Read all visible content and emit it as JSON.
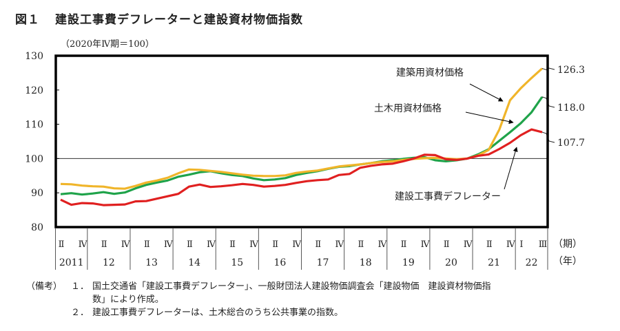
{
  "figure": {
    "number": "図１",
    "title": "建設工事費デフレーターと建設資材物価指数",
    "unit": "（2020年Ⅳ期＝100）"
  },
  "chart_data": {
    "type": "line",
    "title": "建設工事費デフレーターと建設資材物価指数",
    "ylabel": "（2020年Ⅳ期＝100）",
    "ylim": [
      80,
      130
    ],
    "yticks": [
      "80",
      "90",
      "100",
      "110",
      "120",
      "130"
    ],
    "reference_line": 100,
    "x_quarter_labels": [
      "Ⅱ",
      "Ⅳ",
      "Ⅱ",
      "Ⅳ",
      "Ⅱ",
      "Ⅳ",
      "Ⅱ",
      "Ⅳ",
      "Ⅱ",
      "Ⅳ",
      "Ⅱ",
      "Ⅳ",
      "Ⅱ",
      "Ⅳ",
      "Ⅱ",
      "Ⅳ",
      "Ⅱ",
      "Ⅳ",
      "Ⅱ",
      "Ⅳ",
      "Ⅱ",
      "Ⅳ",
      "Ⅰ",
      "Ⅲ"
    ],
    "x_quarter_label_index": [
      0,
      2,
      4,
      6,
      8,
      10,
      12,
      14,
      16,
      18,
      20,
      22,
      24,
      26,
      28,
      30,
      32,
      34,
      36,
      38,
      40,
      42,
      43,
      45
    ],
    "x_year_labels": [
      "2011",
      "12",
      "13",
      "14",
      "15",
      "16",
      "17",
      "18",
      "19",
      "20",
      "21",
      "22"
    ],
    "x_year_quarter_counts": [
      3,
      4,
      4,
      4,
      4,
      4,
      4,
      4,
      4,
      4,
      4,
      3
    ],
    "x_axis_unit_quarter": "（期）",
    "x_axis_unit_year": "（年）",
    "x": [
      "2011Q2",
      "2011Q3",
      "2011Q4",
      "2012Q1",
      "2012Q2",
      "2012Q3",
      "2012Q4",
      "2013Q1",
      "2013Q2",
      "2013Q3",
      "2013Q4",
      "2014Q1",
      "2014Q2",
      "2014Q3",
      "2014Q4",
      "2015Q1",
      "2015Q2",
      "2015Q3",
      "2015Q4",
      "2016Q1",
      "2016Q2",
      "2016Q3",
      "2016Q4",
      "2017Q1",
      "2017Q2",
      "2017Q3",
      "2017Q4",
      "2018Q1",
      "2018Q2",
      "2018Q3",
      "2018Q4",
      "2019Q1",
      "2019Q2",
      "2019Q3",
      "2019Q4",
      "2020Q1",
      "2020Q2",
      "2020Q3",
      "2020Q4",
      "2021Q1",
      "2021Q2",
      "2021Q3",
      "2021Q4",
      "2022Q1",
      "2022Q2",
      "2022Q3"
    ],
    "series": [
      {
        "name": "建築用資材価格",
        "color": "#f0b52a",
        "end_label": "126.3",
        "values": [
          92.6,
          92.5,
          92.1,
          91.9,
          91.8,
          91.3,
          91.2,
          92.0,
          93.0,
          93.6,
          94.4,
          95.7,
          96.8,
          96.7,
          96.4,
          96.1,
          95.7,
          95.3,
          95.0,
          94.9,
          94.9,
          95.1,
          95.8,
          96.2,
          96.5,
          97.1,
          97.7,
          98.0,
          98.3,
          98.7,
          99.0,
          99.2,
          99.6,
          99.9,
          100.1,
          100.2,
          100.0,
          99.8,
          100.0,
          100.9,
          102.5,
          108.5,
          117.0,
          120.5,
          123.5,
          126.3
        ]
      },
      {
        "name": "土木用資材価格",
        "color": "#1fa34a",
        "end_label": "118.0",
        "values": [
          89.6,
          89.9,
          89.5,
          89.8,
          90.2,
          89.7,
          90.1,
          91.3,
          92.3,
          93.0,
          93.6,
          94.7,
          95.3,
          96.0,
          96.3,
          95.7,
          95.2,
          94.9,
          94.2,
          93.7,
          93.9,
          94.3,
          95.2,
          95.8,
          96.3,
          97.0,
          97.6,
          97.8,
          98.3,
          98.7,
          99.2,
          99.5,
          99.9,
          100.2,
          100.4,
          99.5,
          99.2,
          99.5,
          100.0,
          101.2,
          102.7,
          105.2,
          107.7,
          110.3,
          113.5,
          118.0
        ]
      },
      {
        "name": "建設工事費デフレーター",
        "color": "#e02020",
        "end_label": "107.7",
        "values": [
          88.0,
          86.5,
          87.0,
          86.9,
          86.4,
          86.5,
          86.6,
          87.5,
          87.6,
          88.3,
          89.0,
          89.7,
          91.8,
          92.4,
          91.7,
          91.9,
          92.2,
          92.6,
          92.3,
          91.8,
          92.0,
          92.3,
          92.9,
          93.4,
          93.7,
          93.9,
          95.2,
          95.5,
          97.3,
          97.9,
          98.3,
          98.5,
          99.2,
          100.0,
          101.1,
          101.0,
          99.8,
          99.6,
          100.0,
          100.8,
          101.2,
          102.8,
          104.6,
          106.8,
          108.5,
          107.7
        ]
      }
    ],
    "annotations": [
      {
        "text": "建築用資材価格",
        "target": "建築用資材価格"
      },
      {
        "text": "土木用資材価格",
        "target": "土木用資材価格"
      },
      {
        "text": "建設工事費デフレーター",
        "target": "建設工事費デフレーター"
      }
    ]
  },
  "notes": {
    "head": "（備考）",
    "items": [
      {
        "index": "１．",
        "lines": [
          "国土交通省「建設工事費デフレーター」、一般財団法人建設物価調査会「建設物価　建設資材物価指",
          "数」により作成。"
        ]
      },
      {
        "index": "２．",
        "lines": [
          "建設工事費デフレーターは、土木総合のうち公共事業の指数。"
        ]
      }
    ]
  }
}
